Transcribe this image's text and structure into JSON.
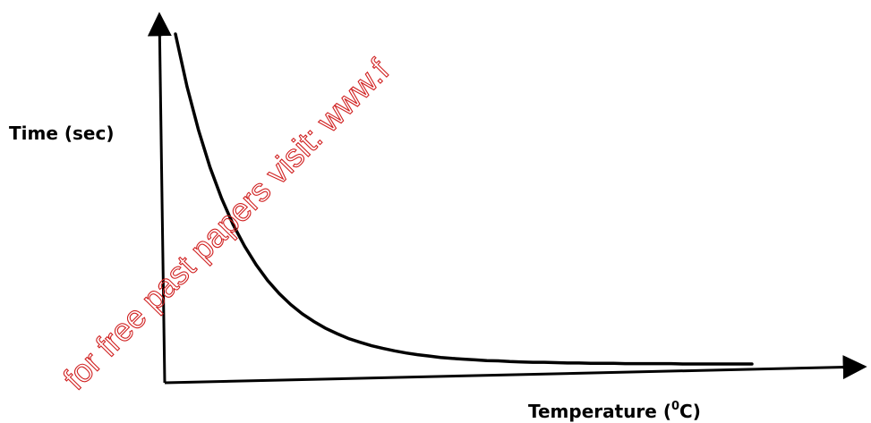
{
  "chart_data": {
    "type": "line",
    "title": "",
    "xlabel_text": "Temperature (",
    "xlabel_degree": "0",
    "xlabel_unit": "C)",
    "ylabel": "Time (sec)",
    "x": [
      0,
      2,
      4,
      6,
      8,
      10,
      12,
      14,
      16,
      18,
      20,
      22,
      24,
      26,
      28,
      30,
      32,
      34,
      36,
      38,
      40,
      42,
      44,
      46,
      48,
      50,
      52,
      54,
      56,
      58,
      60,
      62,
      64,
      66,
      68,
      70,
      72,
      74,
      76,
      78,
      80,
      82,
      84,
      86,
      88,
      90,
      92,
      94,
      96,
      98,
      100
    ],
    "series": [
      {
        "values": [
          100,
          84.8,
          72.1,
          61.4,
          52.4,
          44.8,
          38.5,
          33.1,
          28.6,
          24.8,
          21.6,
          18.9,
          16.7,
          14.8,
          13.2,
          11.8,
          10.7,
          9.7,
          8.9,
          8.2,
          7.6,
          7.1,
          6.7,
          6.3,
          6.0,
          5.8,
          5.6,
          5.4,
          5.3,
          5.1,
          5.0,
          4.9,
          4.9,
          4.8,
          4.7,
          4.7,
          4.6,
          4.6,
          4.6,
          4.5,
          4.5,
          4.5,
          4.5,
          4.5,
          4.4,
          4.4,
          4.4,
          4.4,
          4.4,
          4.4,
          4.4
        ]
      }
    ],
    "xlim": [
      0,
      100
    ],
    "ylim": [
      0,
      100
    ],
    "grid": false,
    "legend": "none"
  },
  "watermark": {
    "text": "for free past papers visit: www.f",
    "color": "#d02020"
  }
}
